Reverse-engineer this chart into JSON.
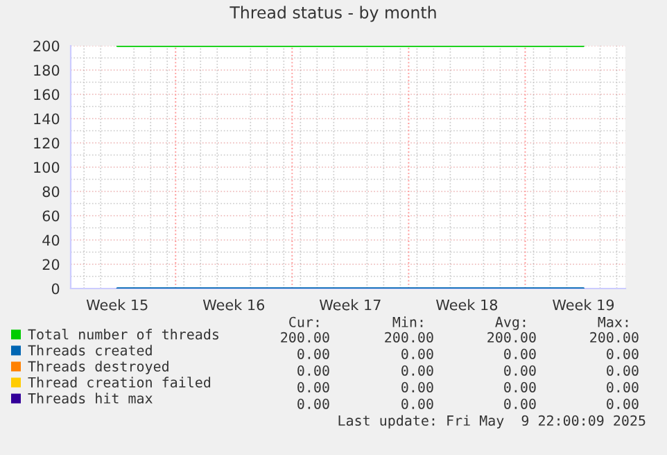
{
  "chart_data": {
    "type": "line",
    "title": "Thread status - by month",
    "categories": [
      "Week 15",
      "Week 16",
      "Week 17",
      "Week 18",
      "Week 19"
    ],
    "ylim": [
      0,
      200
    ],
    "yticks": [
      0,
      20,
      40,
      60,
      80,
      100,
      120,
      140,
      160,
      180,
      200
    ],
    "grid": true,
    "legend": "bottom",
    "line_style": "solid",
    "marker": "none",
    "series": [
      {
        "name": "Total number of threads",
        "color": "#00cc00",
        "values": [
          200,
          200,
          200,
          200,
          200
        ]
      },
      {
        "name": "Threads created",
        "color": "#0066b3",
        "values": [
          0,
          0,
          0,
          0,
          0
        ]
      },
      {
        "name": "Threads destroyed",
        "color": "#ff8000",
        "values": [
          null,
          null,
          null,
          null,
          null
        ]
      },
      {
        "name": "Thread creation failed",
        "color": "#ffcc00",
        "values": [
          null,
          null,
          null,
          null,
          null
        ]
      },
      {
        "name": "Threads hit max",
        "color": "#330099",
        "values": [
          null,
          null,
          null,
          null,
          null
        ]
      }
    ],
    "annotations": [
      "Cur:",
      "Min:",
      "Avg:",
      "Max:",
      "200.00",
      "200.00",
      "200.00",
      "200.00",
      "0.00",
      "0.00",
      "0.00",
      "0.00",
      "0.00",
      "0.00",
      "0.00",
      "0.00",
      "0.00",
      "0.00",
      "0.00",
      "0.00",
      "0.00",
      "0.00",
      "0.00",
      "0.00",
      "Last update: Fri May  9 22:00:09 2025"
    ]
  }
}
